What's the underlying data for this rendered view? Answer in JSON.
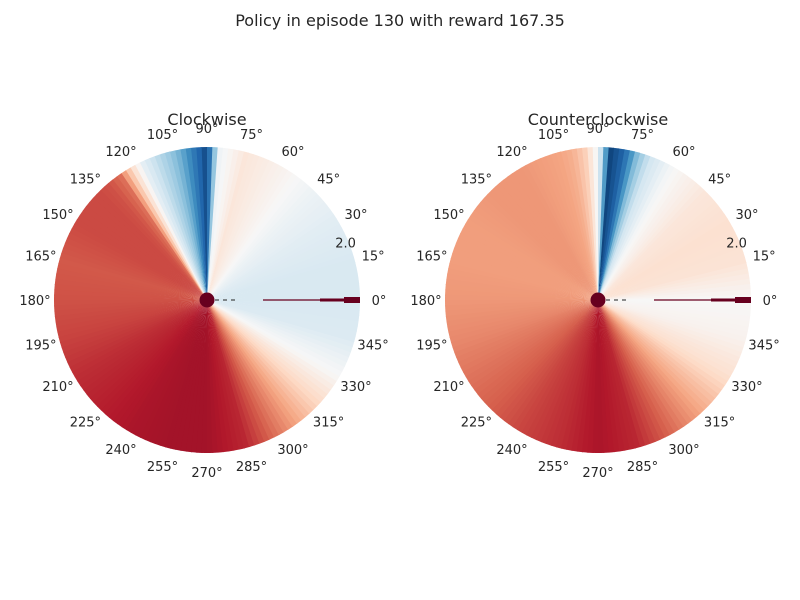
{
  "figure": {
    "title": "Policy in episode 130 with reward 167.35"
  },
  "chart_data": [
    {
      "type": "heatmap",
      "projection": "polar",
      "title": "Clockwise",
      "theta_tick_labels": [
        "0°",
        "15°",
        "30°",
        "45°",
        "60°",
        "75°",
        "90°",
        "105°",
        "120°",
        "135°",
        "150°",
        "165°",
        "180°",
        "195°",
        "210°",
        "225°",
        "240°",
        "255°",
        "270°",
        "285°",
        "300°",
        "315°",
        "330°",
        "345°"
      ],
      "r_tick_labels": [
        "2.0"
      ],
      "r_tick_angle_deg": 22.5,
      "colormap": "RdBu",
      "color_range": [
        0,
        1
      ],
      "grid": false,
      "value_by_angle": {
        "angle_deg": [
          0,
          15,
          30,
          45,
          60,
          75,
          85,
          90,
          95,
          100,
          105,
          110,
          115,
          120,
          125,
          130,
          135,
          150,
          165,
          180,
          195,
          210,
          225,
          240,
          255,
          270,
          285,
          300,
          315,
          330,
          345,
          360
        ],
        "value": [
          0.42,
          0.42,
          0.44,
          0.47,
          0.52,
          0.56,
          0.48,
          0.04,
          0.14,
          0.25,
          0.32,
          0.38,
          0.45,
          0.6,
          0.78,
          0.82,
          0.83,
          0.83,
          0.81,
          0.82,
          0.84,
          0.87,
          0.89,
          0.91,
          0.92,
          0.92,
          0.88,
          0.75,
          0.62,
          0.5,
          0.43,
          0.42
        ]
      },
      "markers": [
        {
          "type": "pendulum",
          "angle_deg": 0,
          "color": "#67001f"
        }
      ]
    },
    {
      "type": "heatmap",
      "projection": "polar",
      "title": "Counterclockwise",
      "theta_tick_labels": [
        "0°",
        "15°",
        "30°",
        "45°",
        "60°",
        "75°",
        "90°",
        "105°",
        "120°",
        "135°",
        "150°",
        "165°",
        "180°",
        "195°",
        "210°",
        "225°",
        "240°",
        "255°",
        "270°",
        "285°",
        "300°",
        "315°",
        "330°",
        "345°"
      ],
      "r_tick_labels": [
        "2.0"
      ],
      "r_tick_angle_deg": 22.5,
      "colormap": "RdBu",
      "color_range": [
        0,
        1
      ],
      "grid": false,
      "value_by_angle": {
        "angle_deg": [
          0,
          15,
          30,
          45,
          60,
          70,
          75,
          80,
          85,
          90,
          95,
          100,
          105,
          120,
          135,
          150,
          165,
          180,
          195,
          210,
          225,
          240,
          255,
          270,
          285,
          300,
          315,
          330,
          345,
          360
        ],
        "value": [
          0.5,
          0.57,
          0.58,
          0.56,
          0.5,
          0.4,
          0.28,
          0.1,
          0.04,
          0.48,
          0.62,
          0.68,
          0.7,
          0.72,
          0.72,
          0.71,
          0.71,
          0.72,
          0.74,
          0.77,
          0.8,
          0.84,
          0.87,
          0.91,
          0.88,
          0.78,
          0.68,
          0.58,
          0.52,
          0.5
        ]
      },
      "markers": [
        {
          "type": "pendulum",
          "angle_deg": 0,
          "color": "#67001f"
        }
      ]
    }
  ]
}
